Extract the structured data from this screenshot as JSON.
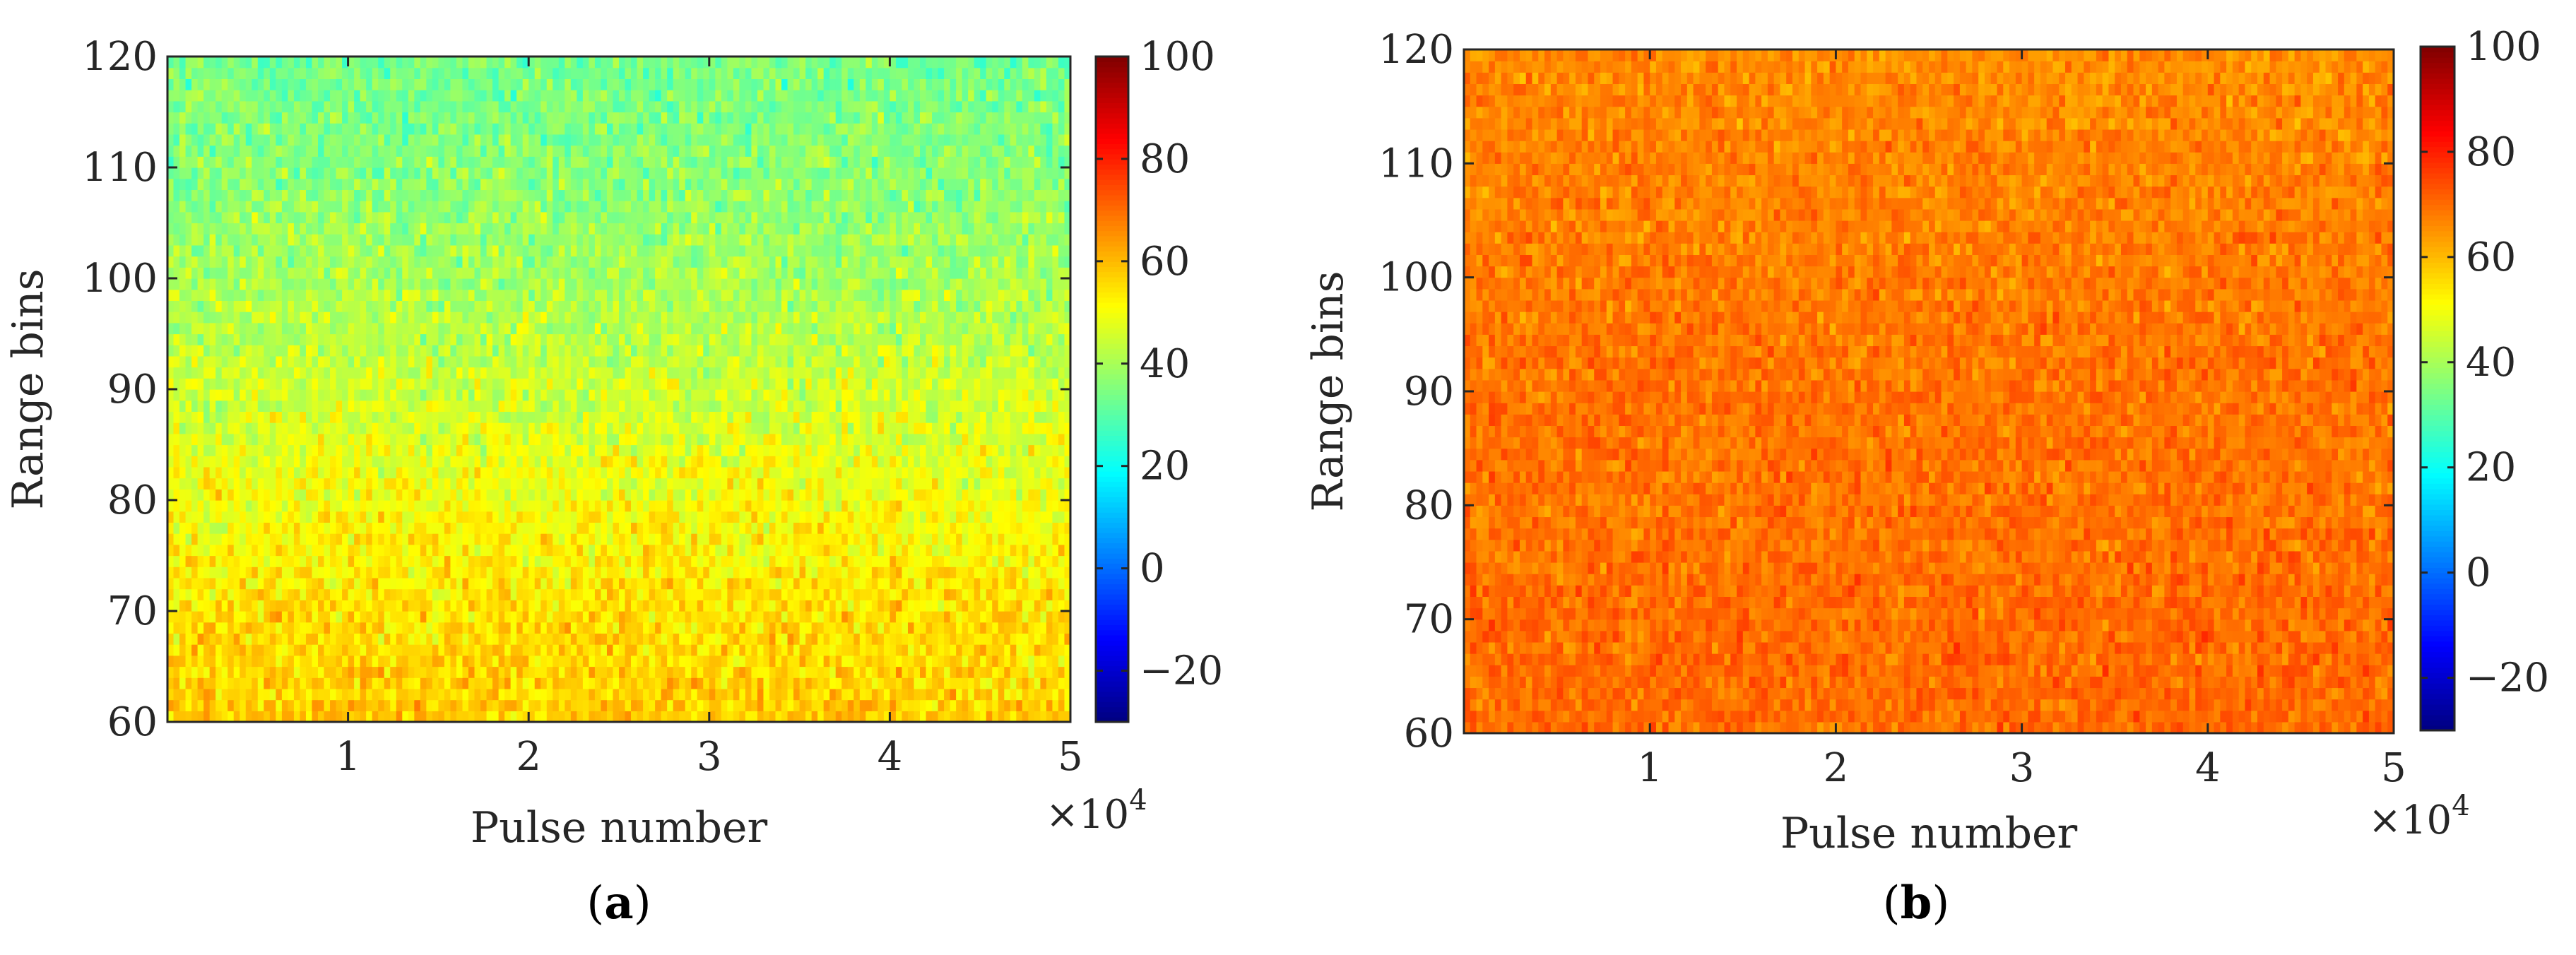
{
  "chart_data": [
    {
      "type": "heatmap",
      "panel": "a",
      "caption_open": "(",
      "caption_letter": "a",
      "caption_close": ")",
      "title": "",
      "xlabel": "Pulse number",
      "ylabel": "Range bins",
      "x_multiplier": "×10",
      "x_multiplier_exp": "4",
      "xlim": [
        0,
        5
      ],
      "ylim": [
        60,
        120
      ],
      "x_ticks": [
        1,
        2,
        3,
        4,
        5
      ],
      "y_ticks": [
        60,
        70,
        80,
        90,
        100,
        110,
        120
      ],
      "x_tick_labels": [
        "1",
        "2",
        "3",
        "4",
        "5"
      ],
      "y_tick_labels": [
        "60",
        "70",
        "80",
        "90",
        "100",
        "110",
        "120"
      ],
      "colorbar": {
        "range": [
          -30,
          100
        ],
        "ticks": [
          -20,
          0,
          20,
          40,
          60,
          80,
          100
        ],
        "tick_labels": [
          "−20",
          "0",
          "20",
          "40",
          "60",
          "80",
          "100"
        ],
        "colormap": "jet"
      },
      "value_profile": {
        "range_bins": [
          60,
          70,
          80,
          90,
          100,
          110,
          120
        ],
        "mean_values": [
          58,
          55,
          50,
          45,
          40,
          36,
          34
        ],
        "spread": 7
      },
      "grid": false
    },
    {
      "type": "heatmap",
      "panel": "b",
      "caption_open": "(",
      "caption_letter": "b",
      "caption_close": ")",
      "title": "",
      "xlabel": "Pulse number",
      "ylabel": "Range bins",
      "x_multiplier": "×10",
      "x_multiplier_exp": "4",
      "xlim": [
        0,
        5
      ],
      "ylim": [
        60,
        120
      ],
      "x_ticks": [
        1,
        2,
        3,
        4,
        5
      ],
      "y_ticks": [
        60,
        70,
        80,
        90,
        100,
        110,
        120
      ],
      "x_tick_labels": [
        "1",
        "2",
        "3",
        "4",
        "5"
      ],
      "y_tick_labels": [
        "60",
        "70",
        "80",
        "90",
        "100",
        "110",
        "120"
      ],
      "colorbar": {
        "range": [
          -30,
          100
        ],
        "ticks": [
          -20,
          0,
          20,
          40,
          60,
          80,
          100
        ],
        "tick_labels": [
          "−20",
          "0",
          "20",
          "40",
          "60",
          "80",
          "100"
        ],
        "colormap": "jet"
      },
      "value_profile": {
        "range_bins": [
          60,
          70,
          80,
          90,
          100,
          110,
          120
        ],
        "mean_values": [
          70,
          70,
          69,
          69,
          68,
          67,
          66
        ],
        "spread": 5
      },
      "grid": false
    }
  ]
}
